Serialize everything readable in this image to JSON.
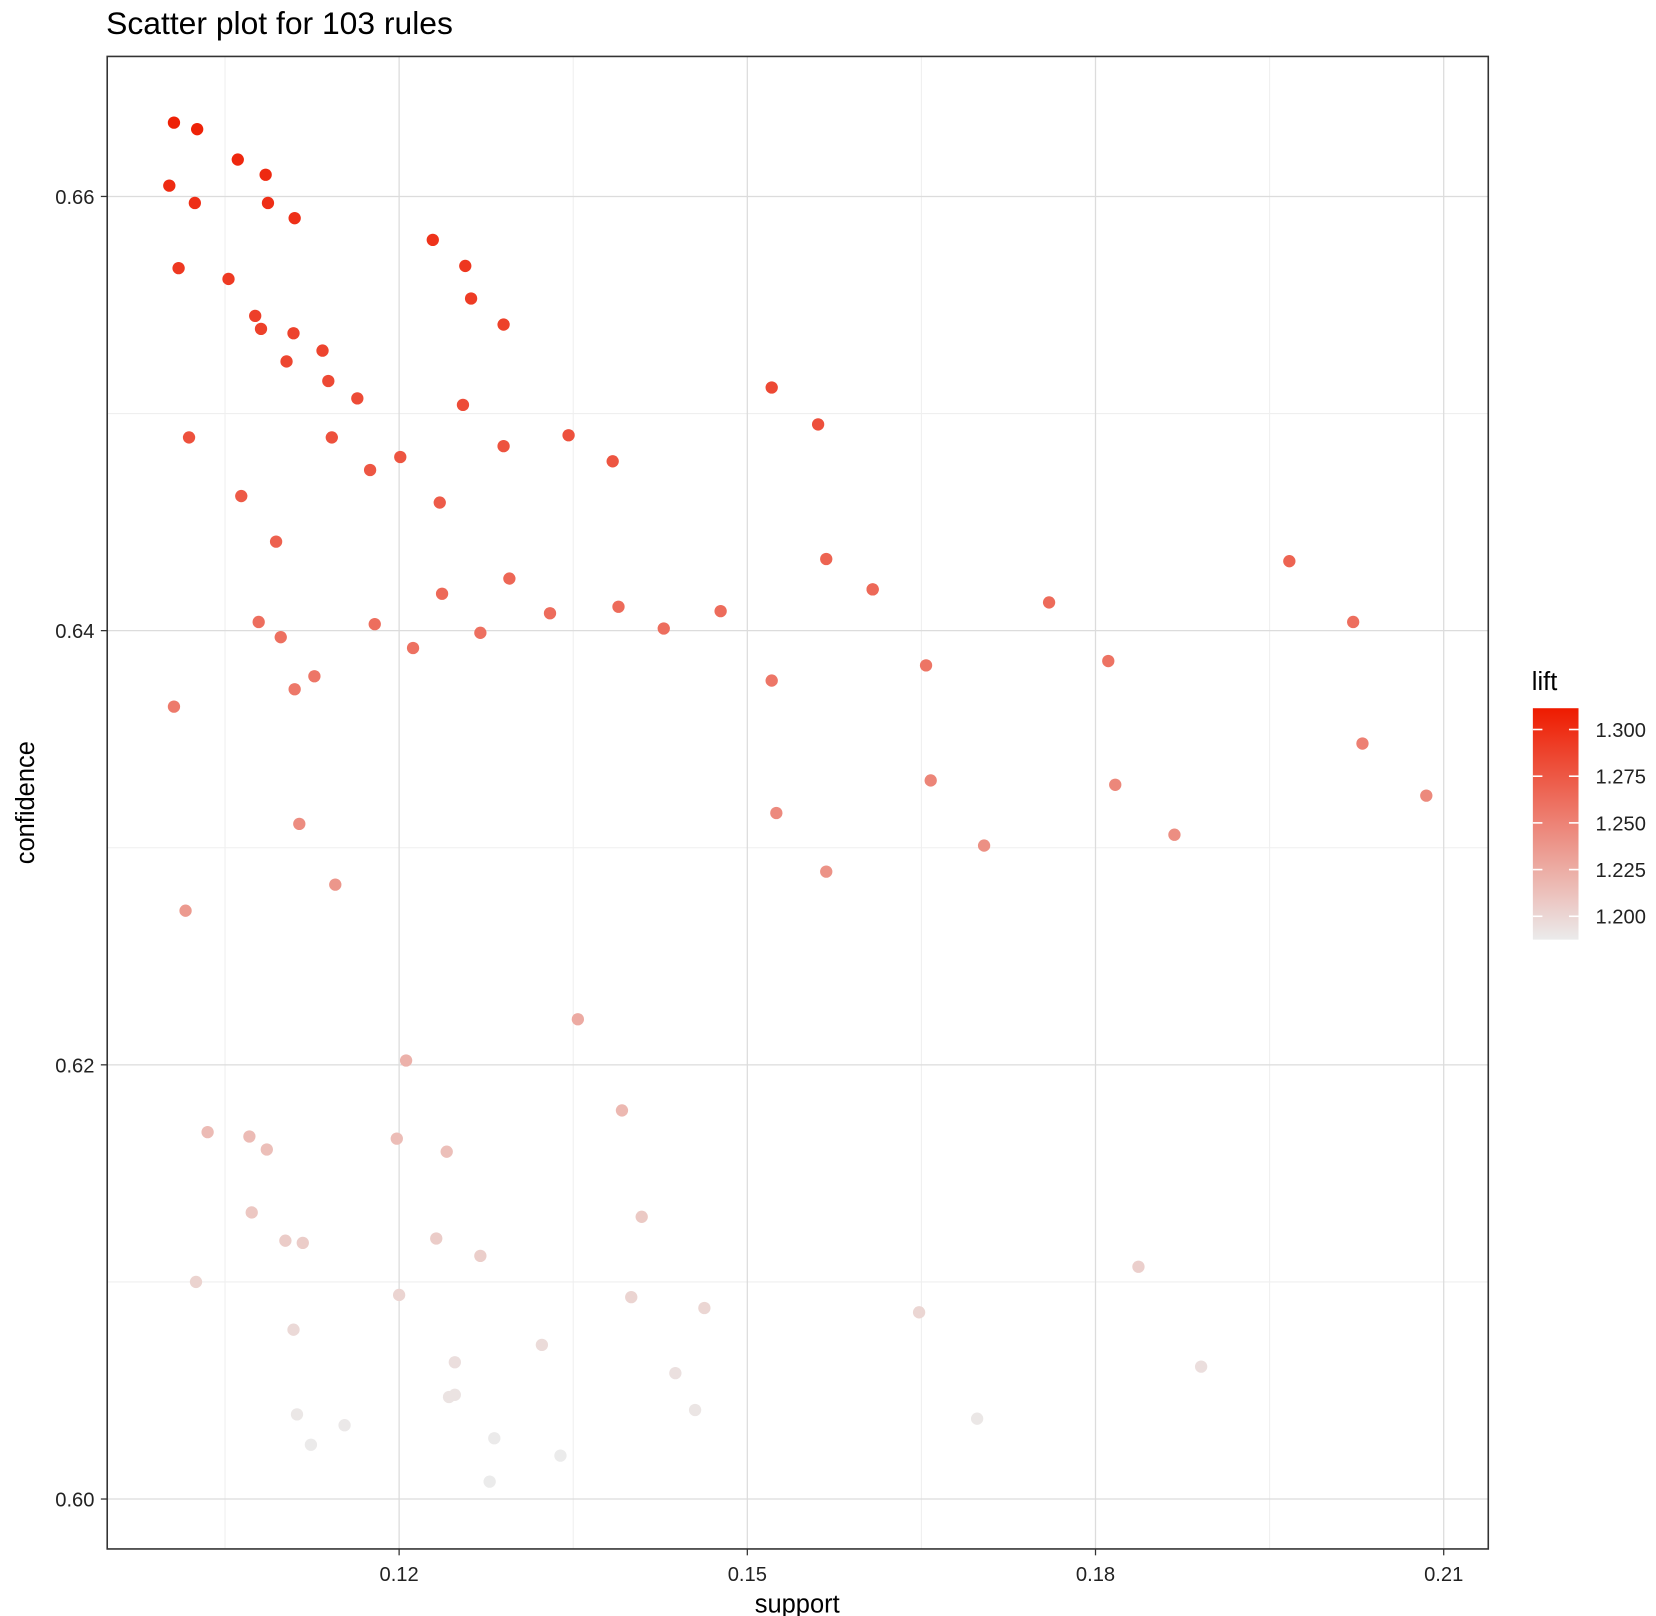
{
  "chart_data": {
    "type": "scatter",
    "title": "Scatter plot for 103 rules",
    "xlabel": "support",
    "ylabel": "confidence",
    "xlim": [
      0.09485,
      0.21384
    ],
    "ylim": [
      0.5977,
      0.66645
    ],
    "xticks": [
      0.12,
      0.15,
      0.18,
      0.21
    ],
    "yticks": [
      {
        "value": 0.6,
        "label": "0.60"
      },
      0.62,
      0.64,
      0.66
    ],
    "xminor_ticks": [
      0.105,
      0.135,
      0.165,
      0.195
    ],
    "yminor_ticks": [
      0.61,
      0.63,
      0.65
    ],
    "grid": true,
    "x": [
      0.1006,
      0.1026,
      0.1061,
      0.1085,
      0.1002,
      0.1024,
      0.1087,
      0.111,
      0.1229,
      0.101,
      0.1257,
      0.1053,
      0.1262,
      0.1076,
      0.129,
      0.1081,
      0.1109,
      0.1134,
      0.1103,
      0.1139,
      0.1521,
      0.1164,
      0.1255,
      0.1561,
      0.1019,
      0.1346,
      0.1142,
      0.129,
      0.1201,
      0.1384,
      0.1175,
      0.1064,
      0.1235,
      0.1094,
      0.1568,
      0.1967,
      0.1295,
      0.1608,
      0.1237,
      0.176,
      0.1389,
      0.133,
      0.1477,
      0.1079,
      0.1179,
      0.2022,
      0.1428,
      0.127,
      0.1098,
      0.1212,
      0.1127,
      0.1654,
      0.1811,
      0.1521,
      0.111,
      0.1006,
      0.203,
      0.1658,
      0.1817,
      0.2085,
      0.1525,
      0.1114,
      0.1704,
      0.1868,
      0.1568,
      0.1145,
      0.1016,
      0.1354,
      0.1206,
      0.1392,
      0.1035,
      0.1071,
      0.1198,
      0.1086,
      0.1241,
      0.1073,
      0.1409,
      0.1102,
      0.1117,
      0.1232,
      0.127,
      0.1837,
      0.1025,
      0.12,
      0.14,
      0.1463,
      0.1648,
      0.1109,
      0.1248,
      0.1323,
      0.1891,
      0.1438,
      0.1243,
      0.1248,
      0.1455,
      0.1112,
      0.1698,
      0.1153,
      0.1124,
      0.1282,
      0.1339,
      0.1278,
      0.1608
    ],
    "values": [
      0.6634,
      0.6631,
      0.6617,
      0.661,
      0.6605,
      0.6597,
      0.6597,
      0.659,
      0.658,
      0.6567,
      0.6568,
      0.6562,
      0.6553,
      0.6545,
      0.6541,
      0.6539,
      0.6537,
      0.6529,
      0.6524,
      0.6515,
      0.6512,
      0.6507,
      0.6504,
      0.6495,
      0.6489,
      0.649,
      0.6489,
      0.6485,
      0.648,
      0.6478,
      0.6474,
      0.6462,
      0.6459,
      0.6441,
      0.6433,
      0.6432,
      0.6424,
      0.6419,
      0.6417,
      0.6413,
      0.6411,
      0.6408,
      0.6409,
      0.6404,
      0.6403,
      0.6404,
      0.6401,
      0.6399,
      0.6397,
      0.6392,
      0.6379,
      0.6384,
      0.6386,
      0.6377,
      0.6373,
      0.6365,
      0.6348,
      0.6331,
      0.6329,
      0.6324,
      0.6316,
      0.6311,
      0.6301,
      0.6306,
      0.6289,
      0.6283,
      0.6271,
      0.6221,
      0.6202,
      0.6179,
      0.6169,
      0.6167,
      0.6166,
      0.6161,
      0.616,
      0.6132,
      0.613,
      0.6119,
      0.6118,
      0.612,
      0.6112,
      0.6107,
      0.61,
      0.6094,
      0.6093,
      0.6088,
      0.6086,
      0.6078,
      0.6063,
      0.6071,
      0.6061,
      0.6058,
      0.6047,
      0.6048,
      0.6041,
      0.6039,
      0.6037,
      0.6034,
      0.6025,
      0.6028,
      0.602,
      0.6008,
      0.6419
    ],
    "colorbar": {
      "title": "lift",
      "values": [
        1.308,
        1.307,
        1.304,
        1.303,
        1.302,
        1.3,
        1.3,
        1.299,
        1.297,
        1.294,
        1.295,
        1.293,
        1.292,
        1.29,
        1.289,
        1.289,
        1.288,
        1.287,
        1.286,
        1.284,
        1.284,
        1.283,
        1.282,
        1.28,
        1.279,
        1.279,
        1.279,
        1.278,
        1.277,
        1.277,
        1.276,
        1.274,
        1.273,
        1.27,
        1.268,
        1.268,
        1.266,
        1.265,
        1.265,
        1.264,
        1.264,
        1.263,
        1.263,
        1.262,
        1.262,
        1.262,
        1.262,
        1.261,
        1.261,
        1.26,
        1.257,
        1.258,
        1.259,
        1.257,
        1.256,
        1.255,
        1.251,
        1.248,
        1.247,
        1.246,
        1.245,
        1.244,
        1.242,
        1.243,
        1.24,
        1.238,
        1.236,
        1.226,
        1.222,
        1.218,
        1.216,
        1.216,
        1.215,
        1.214,
        1.214,
        1.209,
        1.208,
        1.206,
        1.206,
        1.206,
        1.205,
        1.204,
        1.202,
        1.201,
        1.201,
        1.2,
        1.2,
        1.198,
        1.195,
        1.197,
        1.195,
        1.194,
        1.192,
        1.192,
        1.191,
        1.19,
        1.19,
        1.189,
        1.188,
        1.188,
        1.187,
        1.184,
        1.265
      ],
      "lim": [
        1.1875,
        1.3114
      ],
      "ticks": [
        {
          "value": 1.2,
          "label": "1.200"
        },
        {
          "value": 1.225,
          "label": "1.225"
        },
        {
          "value": 1.25,
          "label": "1.250"
        },
        {
          "value": 1.275,
          "label": "1.275"
        },
        {
          "value": 1.3,
          "label": "1.300"
        }
      ],
      "colors": [
        "#ebebeb",
        "#ee1b00"
      ]
    }
  }
}
